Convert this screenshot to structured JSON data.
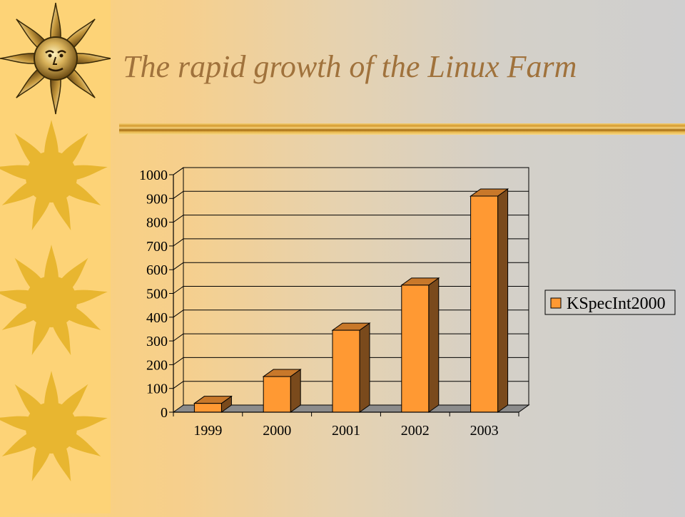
{
  "slide": {
    "title": "The rapid growth of the Linux Farm"
  },
  "decor": {
    "sun_icon": "sun-face-icon",
    "sun_plain_icon": "sun-icon",
    "accent": "#a0723c",
    "sidebar_color": "#fdd377",
    "sun_color": "#e8b630"
  },
  "chart_data": {
    "type": "bar",
    "style": "3d",
    "categories": [
      "1999",
      "2000",
      "2001",
      "2002",
      "2003"
    ],
    "series": [
      {
        "name": "KSpecInt2000",
        "values": [
          37,
          150,
          345,
          535,
          910
        ],
        "color": "#ff9933"
      }
    ],
    "y_ticks": [
      "0",
      "100",
      "200",
      "300",
      "400",
      "500",
      "600",
      "700",
      "800",
      "900",
      "1000"
    ],
    "ylim": [
      0,
      1000
    ],
    "title": "",
    "xlabel": "",
    "ylabel": "",
    "grid": true,
    "legend": "right"
  }
}
